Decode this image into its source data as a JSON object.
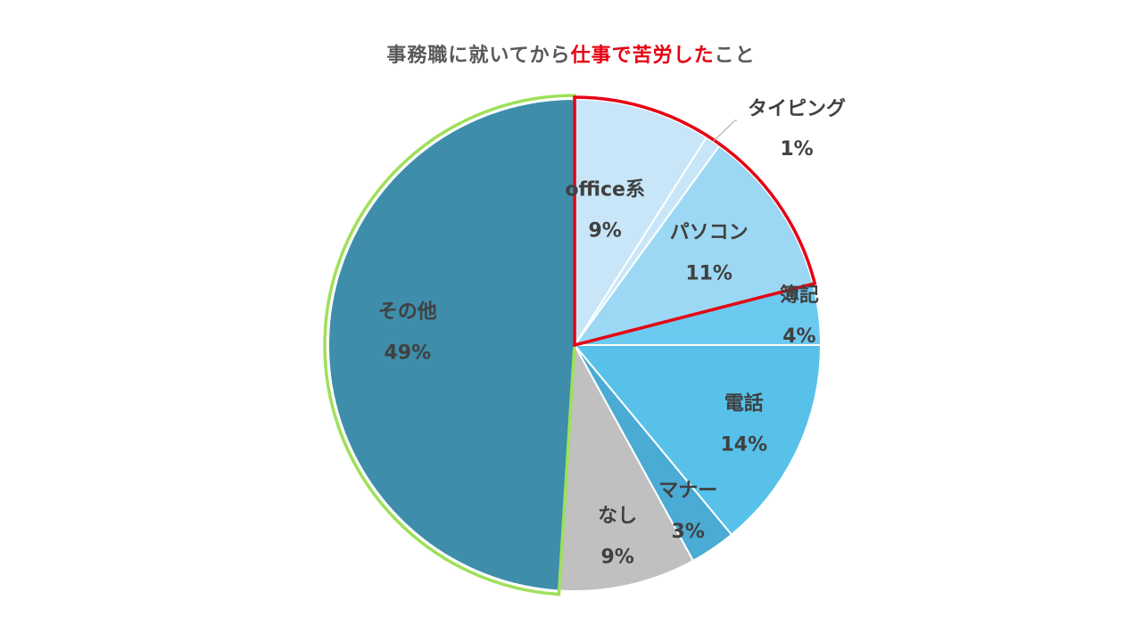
{
  "chart_data": {
    "type": "pie",
    "title_plain": "事務職に就いてから",
    "title_highlight": "仕事で苦労した",
    "title_suffix": "こと",
    "slices": [
      {
        "label": "office系",
        "percent": 9,
        "value_label": "9%",
        "color": "#c8e6f8"
      },
      {
        "label": "タイピング",
        "percent": 1,
        "value_label": "1%",
        "color": "#c8e6f8"
      },
      {
        "label": "パソコン",
        "percent": 11,
        "value_label": "11%",
        "color": "#9cd8f4"
      },
      {
        "label": "簿記",
        "percent": 4,
        "value_label": "4%",
        "color": "#6ccaf0"
      },
      {
        "label": "電話",
        "percent": 14,
        "value_label": "14%",
        "color": "#58c1e9"
      },
      {
        "label": "マナー",
        "percent": 3,
        "value_label": "3%",
        "color": "#4aabd4"
      },
      {
        "label": "なし",
        "percent": 9,
        "value_label": "9%",
        "color": "#c0c0c0"
      },
      {
        "label": "その他",
        "percent": 49,
        "value_label": "49%",
        "color": "#3e8dab"
      }
    ],
    "highlight_red_group": [
      "office系",
      "タイピング",
      "パソコン"
    ],
    "highlight_green_group": [
      "その他"
    ],
    "highlight_red_color": "#e60012",
    "highlight_green_color": "#9ee05a"
  }
}
